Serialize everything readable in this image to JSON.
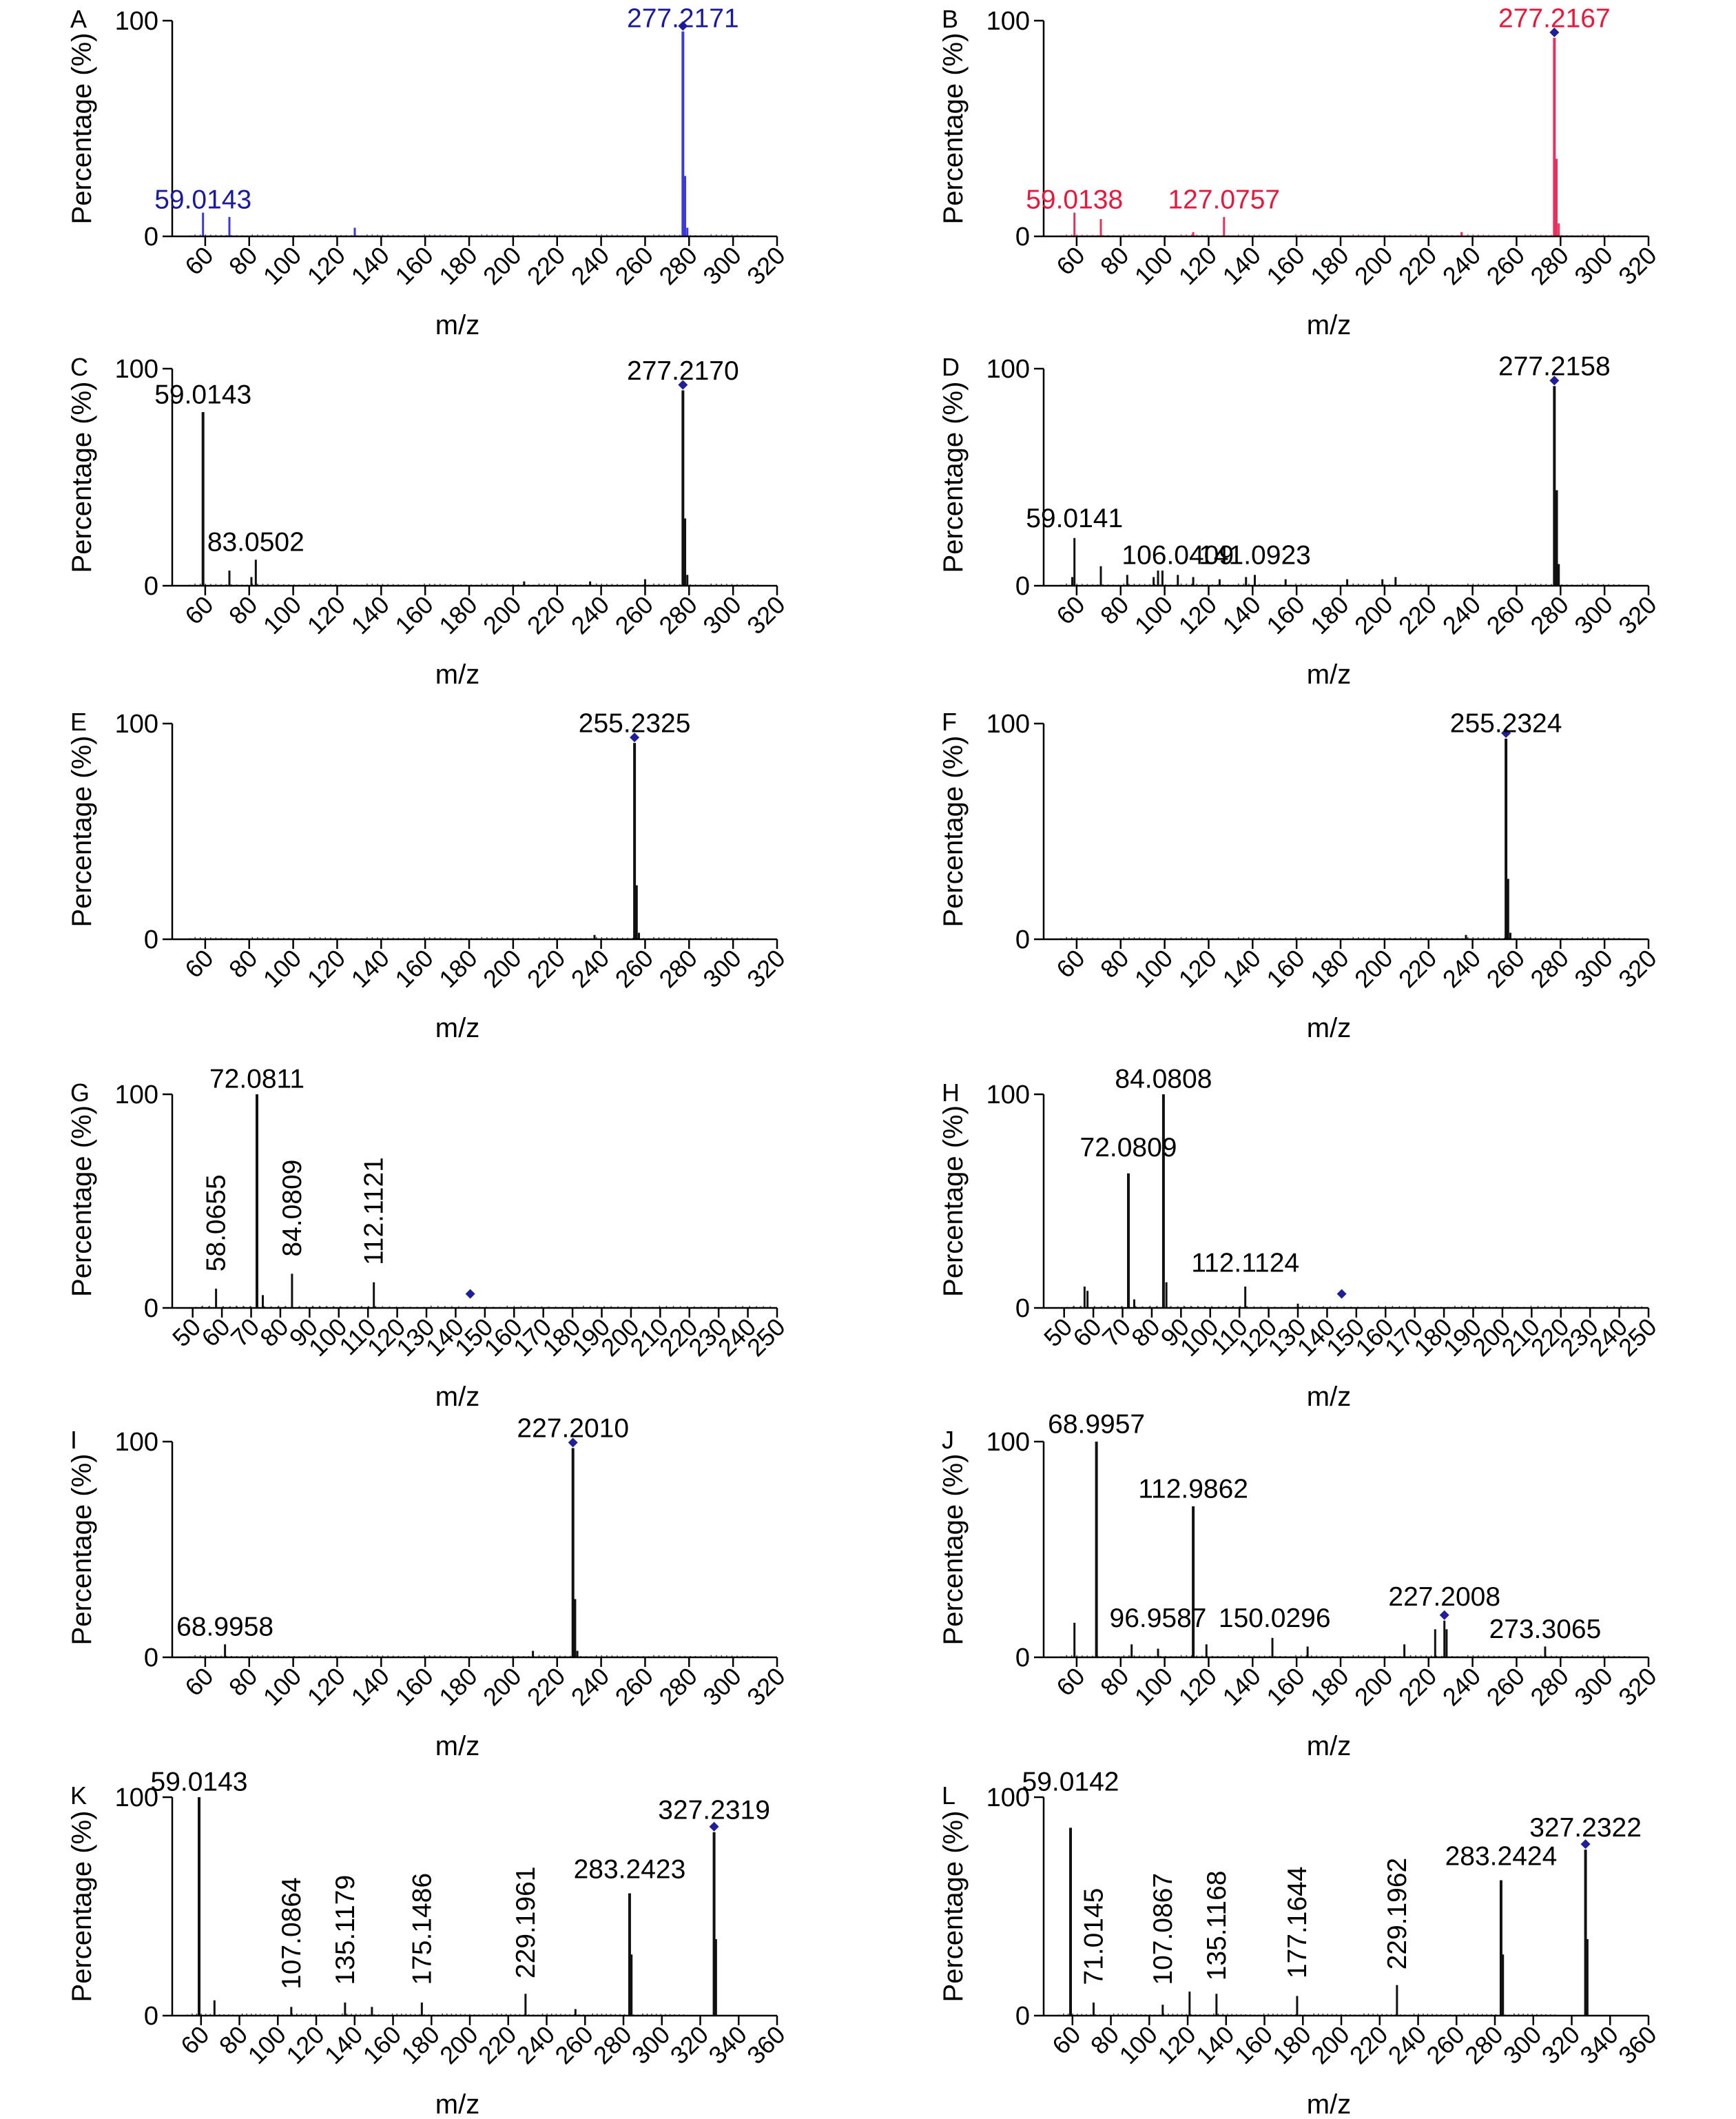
{
  "chart_data": [
    {
      "type": "bar",
      "panel": "A",
      "color": "#3a3adb",
      "label_color": "#1a1a9e",
      "xlabel": "m/z",
      "ylabel": "Percentage (%)",
      "xlim": [
        45,
        320
      ],
      "ylim": [
        0,
        100
      ],
      "xticks": [
        "60",
        "80",
        "100",
        "120",
        "140",
        "160",
        "180",
        "200",
        "220",
        "240",
        "260",
        "280",
        "300",
        "320"
      ],
      "yticks": [
        "0",
        "100"
      ],
      "precursor": 277.2,
      "peaks": [
        [
          59,
          11
        ],
        [
          71,
          9
        ],
        [
          128,
          4
        ],
        [
          277.2,
          95
        ],
        [
          278.2,
          28
        ],
        [
          279.2,
          4
        ]
      ],
      "labels": [
        {
          "text": "59.0143",
          "x": 59,
          "y": 13
        },
        {
          "text": "277.2171",
          "x": 277.2,
          "y": 97
        }
      ]
    },
    {
      "type": "bar",
      "panel": "B",
      "color": "#e8305a",
      "label_color": "#e8183c",
      "xlabel": "m/z",
      "ylabel": "Percentage (%)",
      "xlim": [
        45,
        320
      ],
      "ylim": [
        0,
        100
      ],
      "xticks": [
        "60",
        "80",
        "100",
        "120",
        "140",
        "160",
        "180",
        "200",
        "220",
        "240",
        "260",
        "280",
        "300",
        "320"
      ],
      "yticks": [
        "0",
        "100"
      ],
      "precursor": 277.2,
      "peaks": [
        [
          59,
          11
        ],
        [
          71,
          8
        ],
        [
          113,
          2
        ],
        [
          127,
          9
        ],
        [
          235,
          2
        ],
        [
          277.2,
          92
        ],
        [
          278.2,
          36
        ],
        [
          279.2,
          6
        ]
      ],
      "labels": [
        {
          "text": "59.0138",
          "x": 59,
          "y": 13
        },
        {
          "text": "127.0757",
          "x": 127,
          "y": 13
        },
        {
          "text": "277.2167",
          "x": 277.2,
          "y": 97
        }
      ]
    },
    {
      "type": "bar",
      "panel": "C",
      "color": "#111111",
      "label_color": "#000000",
      "xlabel": "m/z",
      "ylabel": "Percentage (%)",
      "xlim": [
        45,
        320
      ],
      "ylim": [
        0,
        100
      ],
      "xticks": [
        "60",
        "80",
        "100",
        "120",
        "140",
        "160",
        "180",
        "200",
        "220",
        "240",
        "260",
        "280",
        "300",
        "320"
      ],
      "yticks": [
        "0",
        "100"
      ],
      "precursor": 277.2,
      "peaks": [
        [
          59,
          80
        ],
        [
          71,
          7
        ],
        [
          81,
          4
        ],
        [
          83,
          12
        ],
        [
          205,
          2
        ],
        [
          235,
          2
        ],
        [
          260,
          3
        ],
        [
          277.2,
          90
        ],
        [
          278.2,
          31
        ],
        [
          279.2,
          5
        ]
      ],
      "labels": [
        {
          "text": "59.0143",
          "x": 59,
          "y": 84
        },
        {
          "text": "83.0502",
          "x": 83,
          "y": 16
        },
        {
          "text": "277.2170",
          "x": 277.2,
          "y": 95
        }
      ]
    },
    {
      "type": "bar",
      "panel": "D",
      "color": "#111111",
      "label_color": "#000000",
      "xlabel": "m/z",
      "ylabel": "Percentage (%)",
      "xlim": [
        45,
        320
      ],
      "ylim": [
        0,
        100
      ],
      "xticks": [
        "60",
        "80",
        "100",
        "120",
        "140",
        "160",
        "180",
        "200",
        "220",
        "240",
        "260",
        "280",
        "300",
        "320"
      ],
      "yticks": [
        "0",
        "100"
      ],
      "precursor": 277.2,
      "peaks": [
        [
          58,
          4
        ],
        [
          59,
          22
        ],
        [
          71,
          9
        ],
        [
          83,
          5
        ],
        [
          95,
          4
        ],
        [
          97,
          7
        ],
        [
          99,
          7
        ],
        [
          106,
          5
        ],
        [
          113,
          4
        ],
        [
          125,
          3
        ],
        [
          137,
          4
        ],
        [
          141,
          5
        ],
        [
          155,
          3
        ],
        [
          183,
          3
        ],
        [
          199,
          3
        ],
        [
          205,
          4
        ],
        [
          277.2,
          92
        ],
        [
          278.2,
          44
        ],
        [
          279.2,
          10
        ]
      ],
      "labels": [
        {
          "text": "59.0141",
          "x": 59,
          "y": 27
        },
        {
          "text": "106.0409",
          "x": 106,
          "y": 10
        },
        {
          "text": "141.0923",
          "x": 141,
          "y": 10
        },
        {
          "text": "277.2158",
          "x": 277.2,
          "y": 97
        }
      ]
    },
    {
      "type": "bar",
      "panel": "E",
      "color": "#111111",
      "label_color": "#000000",
      "xlabel": "m/z",
      "ylabel": "Percentage (%)",
      "xlim": [
        45,
        320
      ],
      "ylim": [
        0,
        100
      ],
      "xticks": [
        "60",
        "80",
        "100",
        "120",
        "140",
        "160",
        "180",
        "200",
        "220",
        "240",
        "260",
        "280",
        "300",
        "320"
      ],
      "yticks": [
        "0",
        "100"
      ],
      "precursor": 255.2,
      "peaks": [
        [
          237,
          2
        ],
        [
          255.2,
          91
        ],
        [
          256.2,
          25
        ],
        [
          257.2,
          3
        ]
      ],
      "labels": [
        {
          "text": "255.2325",
          "x": 255.2,
          "y": 96
        }
      ]
    },
    {
      "type": "bar",
      "panel": "F",
      "color": "#111111",
      "label_color": "#000000",
      "xlabel": "m/z",
      "ylabel": "Percentage (%)",
      "xlim": [
        45,
        320
      ],
      "ylim": [
        0,
        100
      ],
      "xticks": [
        "60",
        "80",
        "100",
        "120",
        "140",
        "160",
        "180",
        "200",
        "220",
        "240",
        "260",
        "280",
        "300",
        "320"
      ],
      "yticks": [
        "0",
        "100"
      ],
      "precursor": 255.2,
      "peaks": [
        [
          237,
          2
        ],
        [
          255.2,
          93
        ],
        [
          256.2,
          28
        ],
        [
          257.2,
          3
        ]
      ],
      "labels": [
        {
          "text": "255.2324",
          "x": 255.2,
          "y": 96
        }
      ]
    },
    {
      "type": "bar",
      "panel": "G",
      "color": "#111111",
      "label_color": "#000000",
      "xlabel": "m/z",
      "ylabel": "Percentage (%)",
      "xlim": [
        43,
        250
      ],
      "ylim": [
        0,
        100
      ],
      "xticks": [
        "50",
        "60",
        "70",
        "80",
        "90",
        "100",
        "110",
        "120",
        "130",
        "140",
        "150",
        "160",
        "170",
        "180",
        "190",
        "200",
        "210",
        "220",
        "230",
        "240",
        "250"
      ],
      "yticks": [
        "0",
        "100"
      ],
      "precursor": 145,
      "peaks": [
        [
          58,
          9
        ],
        [
          72,
          100
        ],
        [
          74,
          6
        ],
        [
          84,
          16
        ],
        [
          112,
          12
        ]
      ],
      "labels": [
        {
          "text": "58.0655",
          "x": 58,
          "y": 17,
          "rot": true
        },
        {
          "text": "72.0811",
          "x": 72,
          "y": 103
        },
        {
          "text": "84.0809",
          "x": 84,
          "y": 24,
          "rot": true
        },
        {
          "text": "112.1121",
          "x": 112,
          "y": 20,
          "rot": true
        }
      ]
    },
    {
      "type": "bar",
      "panel": "H",
      "color": "#111111",
      "label_color": "#000000",
      "xlabel": "m/z",
      "ylabel": "Percentage (%)",
      "xlim": [
        43,
        250
      ],
      "ylim": [
        0,
        100
      ],
      "xticks": [
        "50",
        "60",
        "70",
        "80",
        "90",
        "100",
        "110",
        "120",
        "130",
        "140",
        "150",
        "160",
        "170",
        "180",
        "190",
        "200",
        "210",
        "220",
        "230",
        "240",
        "250"
      ],
      "yticks": [
        "0",
        "100"
      ],
      "precursor": 145,
      "peaks": [
        [
          57,
          10
        ],
        [
          58,
          8
        ],
        [
          72,
          63
        ],
        [
          74,
          4
        ],
        [
          84,
          100
        ],
        [
          85,
          12
        ],
        [
          112,
          10
        ],
        [
          130,
          2
        ]
      ],
      "labels": [
        {
          "text": "72.0809",
          "x": 72,
          "y": 71
        },
        {
          "text": "84.0808",
          "x": 84,
          "y": 103
        },
        {
          "text": "112.1124",
          "x": 112,
          "y": 17
        }
      ]
    },
    {
      "type": "bar",
      "panel": "I",
      "color": "#111111",
      "label_color": "#000000",
      "xlabel": "m/z",
      "ylabel": "Percentage (%)",
      "xlim": [
        45,
        320
      ],
      "ylim": [
        0,
        100
      ],
      "xticks": [
        "60",
        "80",
        "100",
        "120",
        "140",
        "160",
        "180",
        "200",
        "220",
        "240",
        "260",
        "280",
        "300",
        "320"
      ],
      "yticks": [
        "0",
        "100"
      ],
      "precursor": 227.2,
      "peaks": [
        [
          69,
          6
        ],
        [
          209,
          3
        ],
        [
          227.2,
          97
        ],
        [
          228.2,
          27
        ],
        [
          229.2,
          3
        ]
      ],
      "labels": [
        {
          "text": "68.9958",
          "x": 69,
          "y": 10
        },
        {
          "text": "227.2010",
          "x": 227.2,
          "y": 102
        }
      ]
    },
    {
      "type": "bar",
      "panel": "J",
      "color": "#111111",
      "label_color": "#000000",
      "xlabel": "m/z",
      "ylabel": "Percentage (%)",
      "xlim": [
        45,
        320
      ],
      "ylim": [
        0,
        100
      ],
      "xticks": [
        "60",
        "80",
        "100",
        "120",
        "140",
        "160",
        "180",
        "200",
        "220",
        "240",
        "260",
        "280",
        "300",
        "320"
      ],
      "yticks": [
        "0",
        "100"
      ],
      "precursor": 227.2,
      "peaks": [
        [
          59,
          16
        ],
        [
          69,
          100
        ],
        [
          85,
          6
        ],
        [
          97,
          4
        ],
        [
          113,
          70
        ],
        [
          119,
          6
        ],
        [
          149,
          9
        ],
        [
          165,
          5
        ],
        [
          209,
          6
        ],
        [
          223,
          13
        ],
        [
          227.2,
          17
        ],
        [
          228.2,
          13
        ],
        [
          273,
          5
        ]
      ],
      "labels": [
        {
          "text": "68.9957",
          "x": 69,
          "y": 104
        },
        {
          "text": "112.9862",
          "x": 113,
          "y": 74
        },
        {
          "text": "96.9587",
          "x": 97,
          "y": 14
        },
        {
          "text": "150.0296",
          "x": 150,
          "y": 14
        },
        {
          "text": "227.2008",
          "x": 227.2,
          "y": 24
        },
        {
          "text": "273.3065",
          "x": 273,
          "y": 9
        }
      ]
    },
    {
      "type": "bar",
      "panel": "K",
      "color": "#111111",
      "label_color": "#000000",
      "xlabel": "m/z",
      "ylabel": "Percentage (%)",
      "xlim": [
        45,
        360
      ],
      "ylim": [
        0,
        100
      ],
      "xticks": [
        "60",
        "80",
        "100",
        "120",
        "140",
        "160",
        "180",
        "200",
        "220",
        "240",
        "260",
        "280",
        "300",
        "320",
        "340",
        "360"
      ],
      "yticks": [
        "0",
        "100"
      ],
      "precursor": 327.2,
      "peaks": [
        [
          59,
          100
        ],
        [
          67,
          7
        ],
        [
          107,
          4
        ],
        [
          135,
          6
        ],
        [
          149,
          4
        ],
        [
          175,
          6
        ],
        [
          229,
          10
        ],
        [
          255,
          3
        ],
        [
          283.2,
          56
        ],
        [
          284.2,
          28
        ],
        [
          327.2,
          84
        ],
        [
          328.2,
          35
        ]
      ],
      "labels": [
        {
          "text": "59.0143",
          "x": 59,
          "y": 103
        },
        {
          "text": "107.0864",
          "x": 107,
          "y": 12,
          "rot": true
        },
        {
          "text": "135.1179",
          "x": 135,
          "y": 14,
          "rot": true
        },
        {
          "text": "175.1486",
          "x": 175,
          "y": 14,
          "rot": true
        },
        {
          "text": "229.1961",
          "x": 229,
          "y": 17,
          "rot": true
        },
        {
          "text": "283.2423",
          "x": 283.2,
          "y": 63
        },
        {
          "text": "327.2319",
          "x": 327.2,
          "y": 90
        }
      ]
    },
    {
      "type": "bar",
      "panel": "L",
      "color": "#111111",
      "label_color": "#000000",
      "xlabel": "m/z",
      "ylabel": "Percentage (%)",
      "xlim": [
        45,
        360
      ],
      "ylim": [
        0,
        100
      ],
      "xticks": [
        "60",
        "80",
        "100",
        "120",
        "140",
        "160",
        "180",
        "200",
        "220",
        "240",
        "260",
        "280",
        "300",
        "320",
        "340",
        "360"
      ],
      "yticks": [
        "0",
        "100"
      ],
      "precursor": 327.2,
      "peaks": [
        [
          59,
          86
        ],
        [
          71,
          6
        ],
        [
          107,
          5
        ],
        [
          121,
          11
        ],
        [
          135,
          10
        ],
        [
          177,
          9
        ],
        [
          229,
          14
        ],
        [
          283.2,
          62
        ],
        [
          284.2,
          28
        ],
        [
          327.2,
          76
        ],
        [
          328.2,
          35
        ]
      ],
      "labels": [
        {
          "text": "59.0142",
          "x": 59,
          "y": 103
        },
        {
          "text": "71.0145",
          "x": 71,
          "y": 14,
          "rot": true
        },
        {
          "text": "107.0867",
          "x": 107,
          "y": 14,
          "rot": true
        },
        {
          "text": "135.1168",
          "x": 135,
          "y": 16,
          "rot": true
        },
        {
          "text": "177.1644",
          "x": 177,
          "y": 17,
          "rot": true
        },
        {
          "text": "229.1962",
          "x": 229,
          "y": 21,
          "rot": true
        },
        {
          "text": "283.2424",
          "x": 283.2,
          "y": 69
        },
        {
          "text": "327.2322",
          "x": 327.2,
          "y": 82
        }
      ]
    }
  ]
}
